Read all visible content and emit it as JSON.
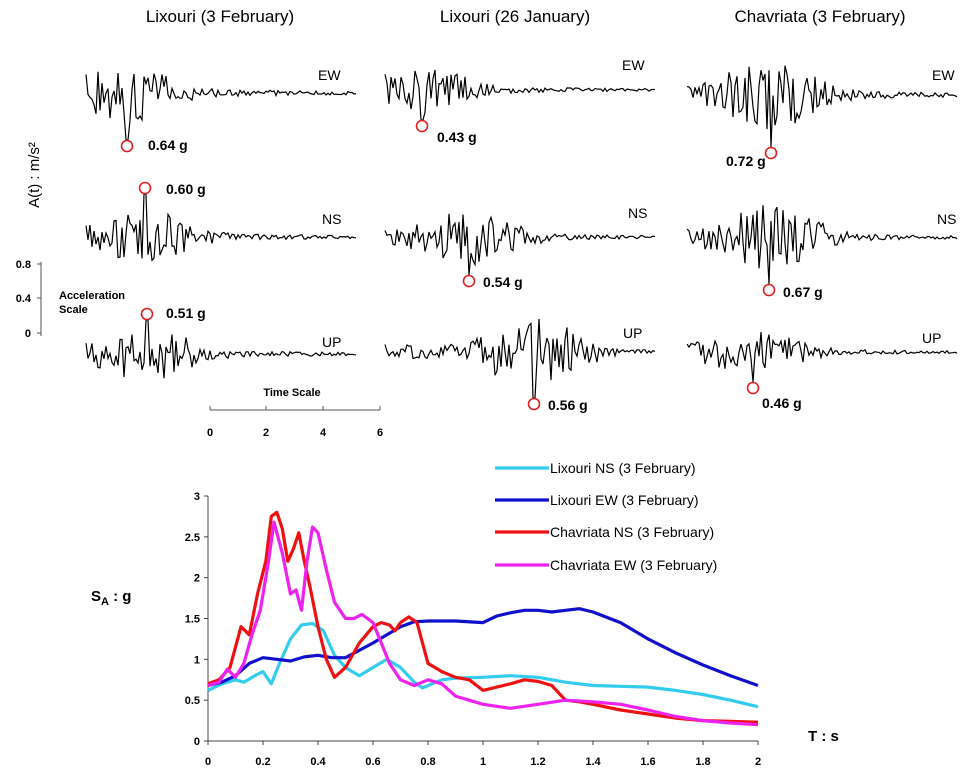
{
  "records": {
    "columns": [
      {
        "title": "Lixouri (3 February)",
        "components": [
          {
            "name": "EW",
            "peak": "0.64 g"
          },
          {
            "name": "NS",
            "peak": "0.60 g"
          },
          {
            "name": "UP",
            "peak": "0.51 g"
          }
        ]
      },
      {
        "title": "Lixouri (26 January)",
        "components": [
          {
            "name": "EW",
            "peak": "0.43 g"
          },
          {
            "name": "NS",
            "peak": "0.54 g"
          },
          {
            "name": "UP",
            "peak": "0.56 g"
          }
        ]
      },
      {
        "title": "Chavriata (3 February)",
        "components": [
          {
            "name": "EW",
            "peak": "0.72 g"
          },
          {
            "name": "NS",
            "peak": "0.67 g"
          },
          {
            "name": "UP",
            "peak": "0.46 g"
          }
        ]
      }
    ],
    "y_axis_label": "A(t) : m/s²",
    "acc_scale": {
      "label_1": "Acceleration",
      "label_2": "Scale",
      "ticks": [
        "0.8",
        "0.4",
        "0"
      ]
    },
    "time_scale": {
      "label": "Time  Scale",
      "ticks": [
        "0",
        "2",
        "4",
        "6"
      ]
    },
    "peak_marker_color": "#e02020",
    "trace_color": "#000000"
  },
  "chart_data": {
    "type": "line",
    "xlabel": "T : s",
    "ylabel": "S_A : g",
    "xlim": [
      0,
      2
    ],
    "ylim": [
      0,
      3
    ],
    "xticks": [
      "0",
      "0.2",
      "0.4",
      "0.6",
      "0.8",
      "1",
      "1.2",
      "1.4",
      "1.6",
      "1.8",
      "2"
    ],
    "yticks": [
      "0",
      "0.5",
      "1",
      "1.5",
      "2",
      "2.5",
      "3"
    ],
    "legend_position": "top-right",
    "series": [
      {
        "name": "Lixouri NS (3 February)",
        "color": "#33ccee",
        "x": [
          0,
          0.05,
          0.1,
          0.13,
          0.17,
          0.2,
          0.23,
          0.26,
          0.3,
          0.34,
          0.38,
          0.42,
          0.46,
          0.5,
          0.55,
          0.6,
          0.65,
          0.7,
          0.75,
          0.78,
          0.85,
          0.9,
          1.0,
          1.1,
          1.2,
          1.3,
          1.4,
          1.5,
          1.6,
          1.7,
          1.8,
          1.9,
          2.0
        ],
        "y": [
          0.62,
          0.7,
          0.75,
          0.72,
          0.8,
          0.85,
          0.7,
          0.95,
          1.25,
          1.42,
          1.44,
          1.35,
          1.05,
          0.9,
          0.8,
          0.9,
          1.0,
          0.9,
          0.72,
          0.65,
          0.75,
          0.77,
          0.78,
          0.8,
          0.78,
          0.72,
          0.68,
          0.67,
          0.66,
          0.62,
          0.57,
          0.5,
          0.42
        ]
      },
      {
        "name": "Lixouri EW (3 February)",
        "color": "#1010cc",
        "x": [
          0,
          0.05,
          0.1,
          0.15,
          0.2,
          0.25,
          0.3,
          0.35,
          0.4,
          0.45,
          0.5,
          0.6,
          0.7,
          0.75,
          0.8,
          0.9,
          1.0,
          1.05,
          1.1,
          1.15,
          1.2,
          1.25,
          1.3,
          1.35,
          1.4,
          1.5,
          1.6,
          1.7,
          1.8,
          1.9,
          2.0
        ],
        "y": [
          0.68,
          0.72,
          0.8,
          0.95,
          1.02,
          1.0,
          0.98,
          1.03,
          1.05,
          1.02,
          1.02,
          1.2,
          1.4,
          1.46,
          1.47,
          1.47,
          1.45,
          1.53,
          1.57,
          1.6,
          1.6,
          1.58,
          1.6,
          1.62,
          1.58,
          1.45,
          1.25,
          1.08,
          0.93,
          0.8,
          0.68
        ]
      },
      {
        "name": "Chavriata NS (3 February)",
        "color": "#ee1111",
        "x": [
          0,
          0.04,
          0.08,
          0.12,
          0.15,
          0.18,
          0.21,
          0.23,
          0.25,
          0.27,
          0.29,
          0.31,
          0.33,
          0.35,
          0.37,
          0.4,
          0.43,
          0.46,
          0.5,
          0.55,
          0.6,
          0.63,
          0.66,
          0.68,
          0.7,
          0.73,
          0.76,
          0.78,
          0.8,
          0.85,
          0.9,
          0.95,
          1.0,
          1.1,
          1.15,
          1.2,
          1.25,
          1.3,
          1.35,
          1.4,
          1.5,
          1.6,
          1.7,
          1.8,
          1.9,
          2.0
        ],
        "y": [
          0.7,
          0.75,
          0.9,
          1.4,
          1.3,
          1.8,
          2.2,
          2.75,
          2.8,
          2.6,
          2.2,
          2.35,
          2.55,
          2.2,
          1.9,
          1.4,
          1.0,
          0.78,
          0.9,
          1.2,
          1.4,
          1.45,
          1.42,
          1.35,
          1.45,
          1.52,
          1.45,
          1.2,
          0.95,
          0.85,
          0.78,
          0.75,
          0.62,
          0.7,
          0.75,
          0.73,
          0.68,
          0.5,
          0.48,
          0.45,
          0.38,
          0.33,
          0.28,
          0.25,
          0.24,
          0.23
        ]
      },
      {
        "name": "Chavriata EW (3 February)",
        "color": "#ee22ee",
        "x": [
          0,
          0.04,
          0.07,
          0.1,
          0.13,
          0.16,
          0.19,
          0.22,
          0.24,
          0.27,
          0.3,
          0.32,
          0.34,
          0.36,
          0.38,
          0.4,
          0.43,
          0.46,
          0.5,
          0.53,
          0.56,
          0.6,
          0.63,
          0.66,
          0.7,
          0.75,
          0.8,
          0.85,
          0.9,
          1.0,
          1.1,
          1.2,
          1.3,
          1.4,
          1.5,
          1.6,
          1.7,
          1.8,
          1.9,
          2.0
        ],
        "y": [
          0.68,
          0.72,
          0.88,
          0.78,
          0.95,
          1.3,
          1.6,
          2.2,
          2.68,
          2.3,
          1.8,
          1.85,
          1.6,
          2.2,
          2.62,
          2.55,
          2.1,
          1.7,
          1.5,
          1.5,
          1.55,
          1.45,
          1.2,
          0.95,
          0.75,
          0.68,
          0.75,
          0.7,
          0.55,
          0.45,
          0.4,
          0.45,
          0.5,
          0.48,
          0.45,
          0.38,
          0.3,
          0.25,
          0.22,
          0.2
        ]
      }
    ]
  }
}
